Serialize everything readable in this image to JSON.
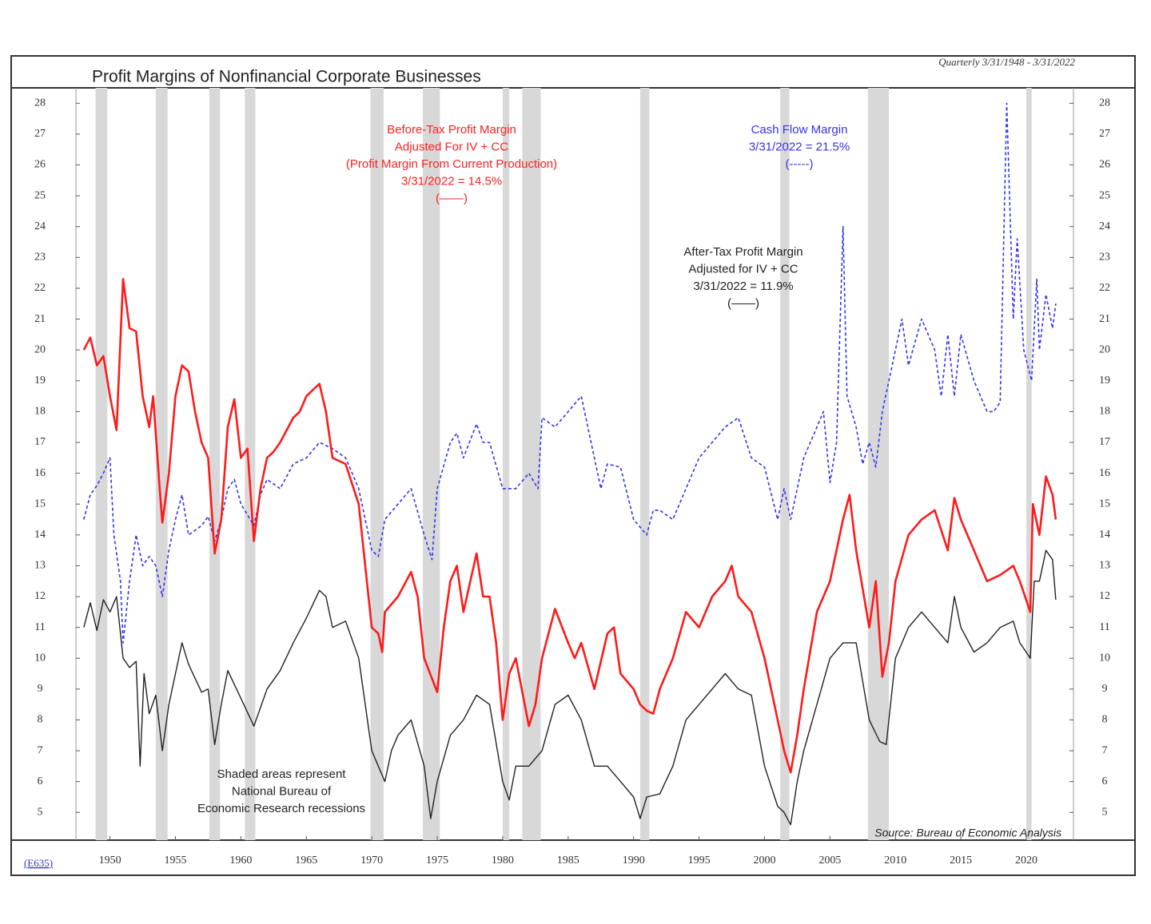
{
  "chart_data": {
    "type": "line",
    "title": "Profit Margins of Nonfinancial Corporate Businesses",
    "subtitle": "Quarterly 3/31/1948 - 3/31/2022",
    "source": "Source: Bureau of Economic Analysis",
    "code": "(E635)",
    "annotations": [
      {
        "lines": [
          "Before-Tax Profit Margin",
          "Adjusted For IV + CC",
          "(Profit Margin From Current Production)",
          "3/31/2022 = 14.5%",
          "(——)"
        ],
        "color": "#ff2020"
      },
      {
        "lines": [
          "Cash Flow Margin",
          "3/31/2022 = 21.5%",
          "(-----)"
        ],
        "color": "#3333ee"
      },
      {
        "lines": [
          "After-Tax Profit Margin",
          "Adjusted for IV + CC",
          "3/31/2022 = 11.9%",
          "(——)"
        ],
        "color": "#222222"
      },
      {
        "lines": [
          "Shaded areas represent",
          "National Bureau of",
          "Economic Research recessions"
        ],
        "color": "#222222"
      }
    ],
    "recessions": [
      [
        1948.9,
        1949.8
      ],
      [
        1953.5,
        1954.4
      ],
      [
        1957.6,
        1958.4
      ],
      [
        1960.3,
        1961.1
      ],
      [
        1969.9,
        1970.9
      ],
      [
        1973.9,
        1975.2
      ],
      [
        1980.0,
        1980.5
      ],
      [
        1981.5,
        1982.9
      ],
      [
        1990.5,
        1991.2
      ],
      [
        2001.2,
        2001.9
      ],
      [
        2007.9,
        2009.5
      ],
      [
        2020.0,
        2020.4
      ]
    ],
    "xlim": [
      1947.4,
      2023.6
    ],
    "xticks": [
      1950,
      1955,
      1960,
      1965,
      1970,
      1975,
      1980,
      1985,
      1990,
      1995,
      2000,
      2005,
      2010,
      2015,
      2020
    ],
    "ylim": [
      4.1,
      28.5
    ],
    "yticks": [
      5,
      6,
      7,
      8,
      9,
      10,
      11,
      12,
      13,
      14,
      15,
      16,
      17,
      18,
      19,
      20,
      21,
      22,
      23,
      24,
      25,
      26,
      27,
      28
    ],
    "series": [
      {
        "name": "Cash Flow Margin",
        "color": "#3333ee",
        "dash": true,
        "x": [
          1948,
          1948.5,
          1949,
          1949.5,
          1950,
          1950.3,
          1950.8,
          1951,
          1951.5,
          1952,
          1952.5,
          1953,
          1953.5,
          1954,
          1954.5,
          1955,
          1955.5,
          1956,
          1957,
          1957.5,
          1958,
          1958.5,
          1959,
          1959.5,
          1960,
          1961,
          1961.5,
          1962,
          1963,
          1964,
          1965,
          1966,
          1967,
          1968,
          1969,
          1970,
          1970.5,
          1971,
          1972,
          1973,
          1974,
          1974.6,
          1975,
          1976,
          1976.5,
          1977,
          1978,
          1978.5,
          1979,
          1980,
          1981,
          1982,
          1982.7,
          1983,
          1984,
          1985,
          1986,
          1987,
          1987.5,
          1988,
          1989,
          1990,
          1991,
          1991.5,
          1992,
          1993,
          1994,
          1995,
          1996,
          1997,
          1998,
          1999,
          2000,
          2001,
          2001.5,
          2002,
          2003,
          2004,
          2004.5,
          2005,
          2005.5,
          2006,
          2006.3,
          2007,
          2007.5,
          2008,
          2008.5,
          2009,
          2010,
          2010.5,
          2011,
          2012,
          2013,
          2013.5,
          2014,
          2014.5,
          2015,
          2016,
          2017,
          2017.5,
          2018,
          2018.5,
          2019,
          2019.3,
          2019.8,
          2020.4,
          2020.8,
          2021,
          2021.5,
          2022,
          2022.25
        ],
        "values": [
          14.5,
          15.3,
          15.6,
          16,
          16.5,
          14,
          12.5,
          10.5,
          12.5,
          14,
          13,
          13.3,
          13,
          12,
          13.5,
          14.5,
          15.3,
          14,
          14.3,
          14.6,
          13.8,
          14.5,
          15.5,
          15.8,
          15,
          14.3,
          15.3,
          15.8,
          15.5,
          16.3,
          16.5,
          17,
          16.8,
          16.5,
          15.5,
          13.5,
          13.3,
          14.5,
          15,
          15.5,
          14,
          13.2,
          15.5,
          17,
          17.3,
          16.5,
          17.6,
          17,
          17,
          15.5,
          15.5,
          16,
          15.5,
          17.8,
          17.5,
          18,
          18.5,
          16.5,
          15.5,
          16.3,
          16.2,
          14.5,
          14,
          14.8,
          14.8,
          14.5,
          15.5,
          16.5,
          17,
          17.5,
          17.8,
          16.5,
          16.2,
          14.5,
          15.5,
          14.5,
          16.5,
          17.5,
          18,
          15.7,
          17,
          24,
          18.5,
          17.5,
          16.3,
          17,
          16.2,
          18,
          20,
          21,
          19.5,
          21,
          20,
          18.5,
          20.5,
          18.5,
          20.5,
          19,
          18,
          18,
          18.3,
          28,
          21,
          23.6,
          20,
          19,
          22.3,
          20,
          21.8,
          20.7,
          21.5
        ]
      },
      {
        "name": "Before-Tax Profit Margin",
        "color": "#ff1a1a",
        "dash": false,
        "x": [
          1948,
          1948.5,
          1949,
          1949.5,
          1950,
          1950.5,
          1951,
          1951.5,
          1952,
          1952.5,
          1953,
          1953.3,
          1953.8,
          1954,
          1954.5,
          1955,
          1955.5,
          1956,
          1956.5,
          1957,
          1957.5,
          1958,
          1958.5,
          1959,
          1959.5,
          1960,
          1960.5,
          1961,
          1961.5,
          1962,
          1962.5,
          1963,
          1964,
          1964.5,
          1965,
          1965.5,
          1966,
          1966.5,
          1967,
          1968,
          1969,
          1970,
          1970.5,
          1970.8,
          1971,
          1972,
          1973,
          1973.5,
          1974,
          1975,
          1975.5,
          1976,
          1976.5,
          1977,
          1978,
          1978.5,
          1979,
          1979.5,
          1980,
          1980.5,
          1981,
          1982,
          1982.5,
          1983,
          1984,
          1985,
          1985.5,
          1986,
          1987,
          1988,
          1988.5,
          1989,
          1990,
          1990.5,
          1991,
          1991.5,
          1992,
          1993,
          1994,
          1995,
          1996,
          1997,
          1997.5,
          1998,
          1999,
          2000,
          2001,
          2001.5,
          2002,
          2002.5,
          2003,
          2004,
          2005,
          2006,
          2006.5,
          2007,
          2008,
          2008.5,
          2009,
          2009.5,
          2010,
          2011,
          2012,
          2013,
          2014,
          2014.5,
          2015,
          2016,
          2017,
          2018,
          2019,
          2019.5,
          2020.3,
          2020.5,
          2021,
          2021.5,
          2022,
          2022.25
        ],
        "values": [
          20,
          20.4,
          19.5,
          19.8,
          18.5,
          17.4,
          22.3,
          20.7,
          20.6,
          18.5,
          17.5,
          18.5,
          15.5,
          14.4,
          16,
          18.5,
          19.5,
          19.3,
          18,
          17,
          16.5,
          13.4,
          14.5,
          17.5,
          18.4,
          16.5,
          16.8,
          13.8,
          15.5,
          16.5,
          16.7,
          17,
          17.8,
          18,
          18.5,
          18.7,
          18.9,
          18,
          16.5,
          16.3,
          15,
          11,
          10.8,
          10.2,
          11.5,
          12,
          12.8,
          12,
          10,
          8.9,
          11,
          12.5,
          13,
          11.5,
          13.4,
          12,
          12,
          10.5,
          8,
          9.5,
          10,
          7.8,
          8.5,
          10,
          11.6,
          10.5,
          10,
          10.5,
          9,
          10.8,
          11,
          9.5,
          9,
          8.5,
          8.3,
          8.2,
          9,
          10,
          11.5,
          11,
          12,
          12.5,
          13,
          12,
          11.5,
          10,
          8,
          7,
          6.3,
          7.5,
          9,
          11.5,
          12.5,
          14.5,
          15.3,
          13.5,
          11,
          12.5,
          9.4,
          10.5,
          12.5,
          14,
          14.5,
          14.8,
          13.5,
          15.2,
          14.5,
          13.5,
          12.5,
          12.7,
          13,
          12.5,
          11.5,
          15,
          14,
          15.9,
          15.3,
          14.5
        ]
      },
      {
        "name": "After-Tax Profit Margin",
        "color": "#222222",
        "dash": false,
        "x": [
          1948,
          1948.5,
          1949,
          1949.5,
          1950,
          1950.5,
          1951,
          1951.5,
          1952,
          1952.3,
          1952.6,
          1953,
          1953.5,
          1954,
          1954.5,
          1955,
          1955.5,
          1956,
          1957,
          1957.5,
          1958,
          1958.5,
          1959,
          1960,
          1961,
          1962,
          1963,
          1964,
          1965,
          1966,
          1966.5,
          1967,
          1968,
          1969,
          1970,
          1970.5,
          1971,
          1971.5,
          1972,
          1973,
          1974,
          1974.5,
          1975,
          1976,
          1977,
          1978,
          1979,
          1980,
          1980.5,
          1981,
          1982,
          1983,
          1984,
          1985,
          1986,
          1987,
          1988,
          1989,
          1990,
          1990.5,
          1991,
          1992,
          1993,
          1994,
          1995,
          1996,
          1997,
          1998,
          1999,
          2000,
          2001,
          2001.5,
          2002,
          2002.5,
          2003,
          2004,
          2005,
          2006,
          2007,
          2008,
          2008.8,
          2009.3,
          2010,
          2011,
          2012,
          2013,
          2014,
          2014.5,
          2015,
          2016,
          2017,
          2018,
          2019,
          2019.5,
          2020.3,
          2020.6,
          2021,
          2021.5,
          2022,
          2022.25
        ],
        "values": [
          11,
          11.8,
          10.9,
          11.9,
          11.5,
          12,
          10,
          9.7,
          9.9,
          6.5,
          9.5,
          8.2,
          8.8,
          7,
          8.5,
          9.5,
          10.5,
          9.8,
          8.9,
          9,
          7.2,
          8.5,
          9.6,
          8.7,
          7.8,
          9,
          9.6,
          10.5,
          11.3,
          12.2,
          12,
          11,
          11.2,
          10,
          7,
          6.5,
          6,
          7,
          7.5,
          8,
          6.5,
          4.8,
          6,
          7.5,
          8,
          8.8,
          8.5,
          6,
          5.4,
          6.5,
          6.5,
          7,
          8.5,
          8.8,
          8,
          6.5,
          6.5,
          6,
          5.5,
          4.8,
          5.5,
          5.6,
          6.5,
          8,
          8.5,
          9,
          9.5,
          9,
          8.8,
          6.5,
          5.2,
          5,
          4.6,
          6,
          7,
          8.5,
          10,
          10.5,
          10.5,
          8,
          7.3,
          7.2,
          10,
          11,
          11.5,
          11,
          10.5,
          12,
          11,
          10.2,
          10.5,
          11,
          11.2,
          10.5,
          10,
          12.5,
          12.5,
          13.5,
          13.2,
          11.9
        ]
      }
    ]
  }
}
